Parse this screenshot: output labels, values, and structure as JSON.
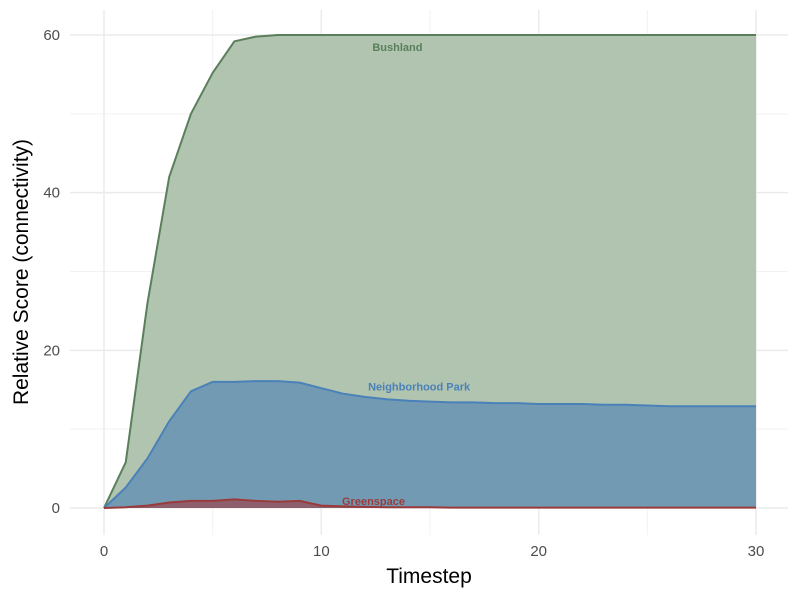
{
  "chart_data": {
    "type": "area",
    "xlabel": "Timestep",
    "ylabel": "Relative Score (connectivity)",
    "xlim": [
      0,
      30
    ],
    "ylim": [
      -3.5,
      63.5
    ],
    "x_ticks": [
      0,
      10,
      20,
      30
    ],
    "y_ticks": [
      0,
      20,
      40,
      60
    ],
    "grid": true,
    "legend": "none",
    "x": [
      0,
      1,
      2,
      3,
      4,
      5,
      6,
      7,
      8,
      9,
      10,
      11,
      12,
      13,
      14,
      15,
      16,
      17,
      18,
      19,
      20,
      21,
      22,
      23,
      24,
      25,
      26,
      27,
      28,
      29,
      30
    ],
    "series": [
      {
        "name": "Bushland",
        "fill": "#a9bfa9",
        "line": "#5a7f5a",
        "label_color": "#5a7f5a",
        "label_x": 13.5,
        "label_y": 58.5,
        "values": [
          0,
          5.8,
          26,
          42,
          50,
          55.2,
          59.2,
          59.8,
          60,
          60,
          60,
          60,
          60,
          60,
          60,
          60,
          60,
          60,
          60,
          60,
          60,
          60,
          60,
          60,
          60,
          60,
          60,
          60,
          60,
          60,
          60
        ]
      },
      {
        "name": "Neighborhood Park",
        "fill": "#6e96b3",
        "line": "#4a81b8",
        "label_color": "#4a81b8",
        "label_x": 14.5,
        "label_y": 15.4,
        "values": [
          0,
          2.6,
          6.3,
          11,
          14.8,
          16,
          16,
          16.1,
          16.1,
          15.9,
          15.2,
          14.5,
          14.1,
          13.8,
          13.6,
          13.5,
          13.4,
          13.4,
          13.3,
          13.3,
          13.2,
          13.2,
          13.2,
          13.1,
          13.1,
          13.0,
          12.9,
          12.9,
          12.9,
          12.9,
          12.9
        ]
      },
      {
        "name": "Greenspace",
        "fill": "#8f5a66",
        "line": "#9a3b3b",
        "label_color": "#9a3b3b",
        "label_x": 12.4,
        "label_y": 0.9,
        "values": [
          0,
          0.1,
          0.3,
          0.7,
          0.9,
          0.9,
          1.1,
          0.9,
          0.8,
          0.9,
          0.3,
          0.2,
          0.15,
          0.1,
          0.1,
          0.1,
          0.05,
          0.05,
          0.05,
          0.05,
          0.05,
          0.05,
          0.05,
          0.05,
          0.05,
          0.05,
          0.05,
          0.05,
          0.05,
          0.05,
          0.05
        ]
      }
    ]
  }
}
